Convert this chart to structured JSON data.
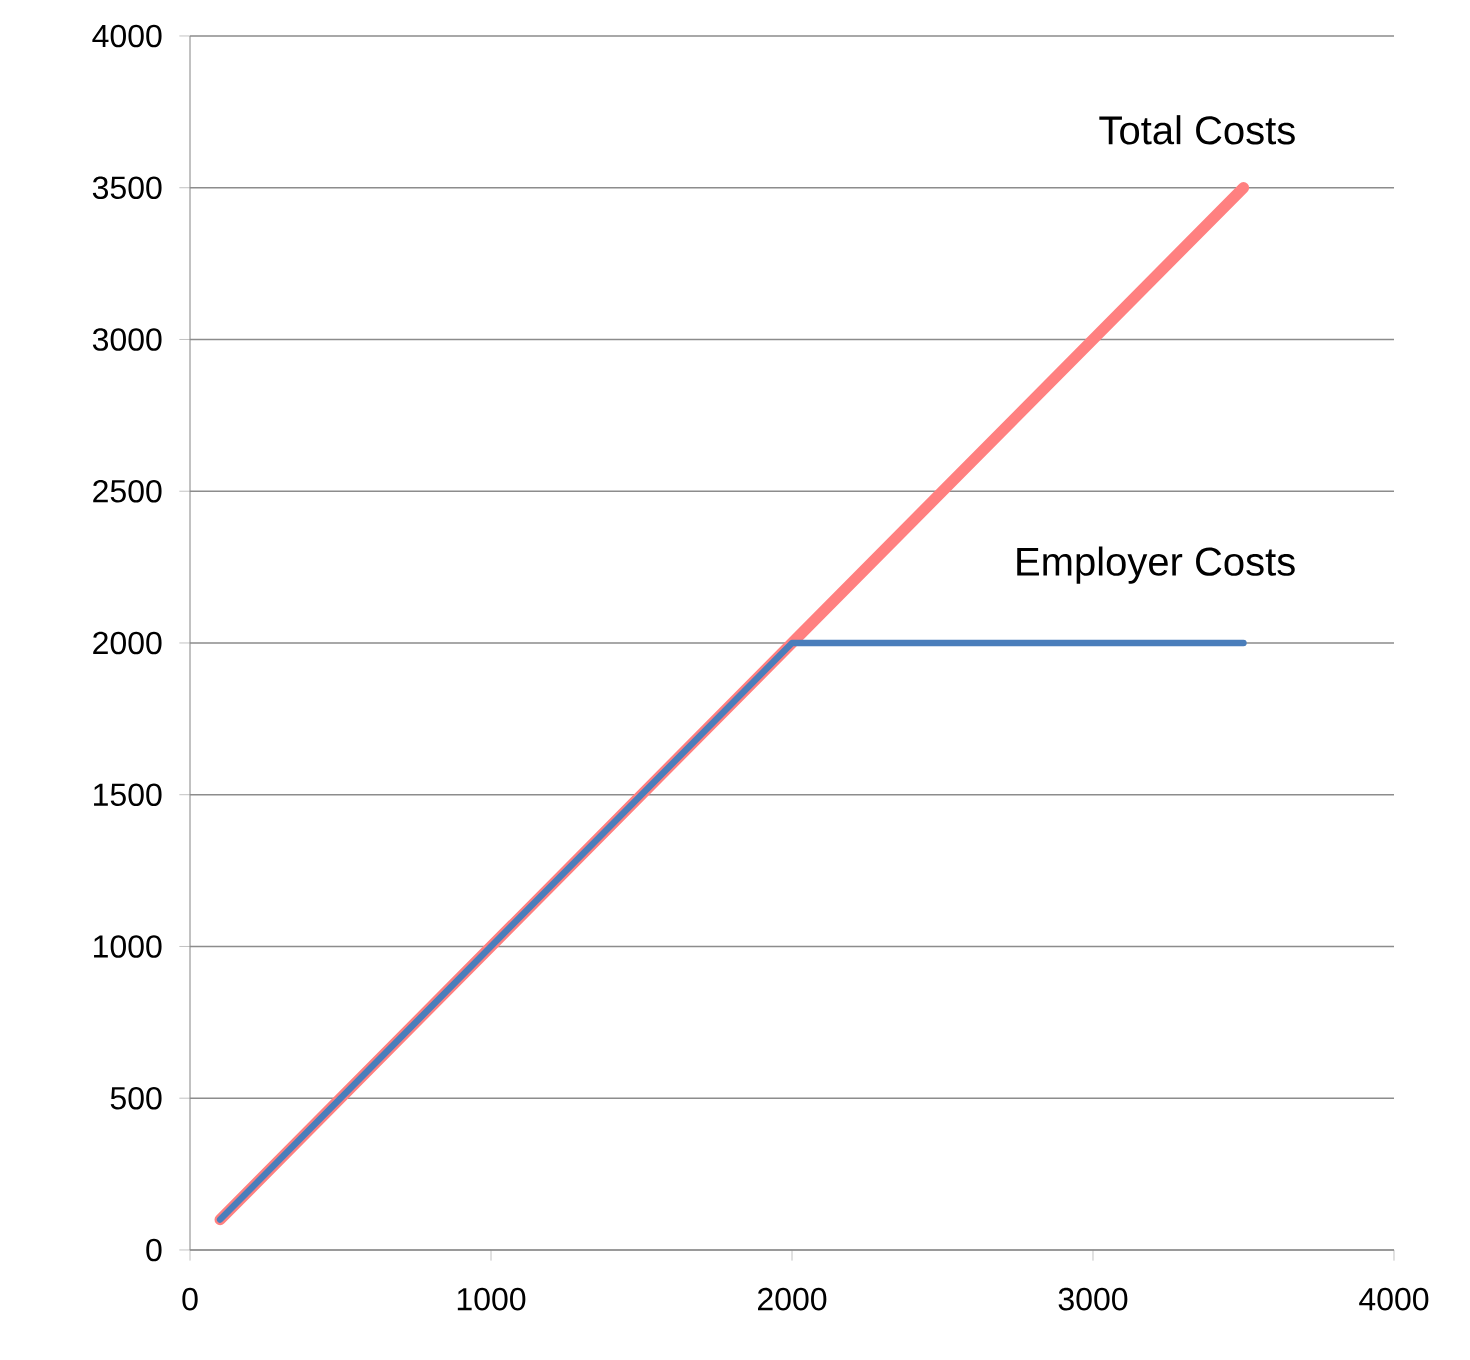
{
  "chart_data": {
    "type": "line",
    "xlim": [
      0,
      4000
    ],
    "ylim": [
      0,
      4000
    ],
    "xticks": [
      0,
      1000,
      2000,
      3000,
      4000
    ],
    "yticks": [
      0,
      500,
      1000,
      1500,
      2000,
      2500,
      3000,
      3500,
      4000
    ],
    "grid": "y",
    "legend": false,
    "marker": "none",
    "line_style": "solid",
    "series": [
      {
        "name": "Total Costs",
        "color": "#ff8080",
        "x": [
          100,
          3500
        ],
        "values": [
          100,
          3500
        ]
      },
      {
        "name": "Employer Costs",
        "color": "#4a7ebb",
        "x": [
          100,
          2000,
          3500
        ],
        "values": [
          100,
          2000,
          2000
        ]
      }
    ]
  }
}
